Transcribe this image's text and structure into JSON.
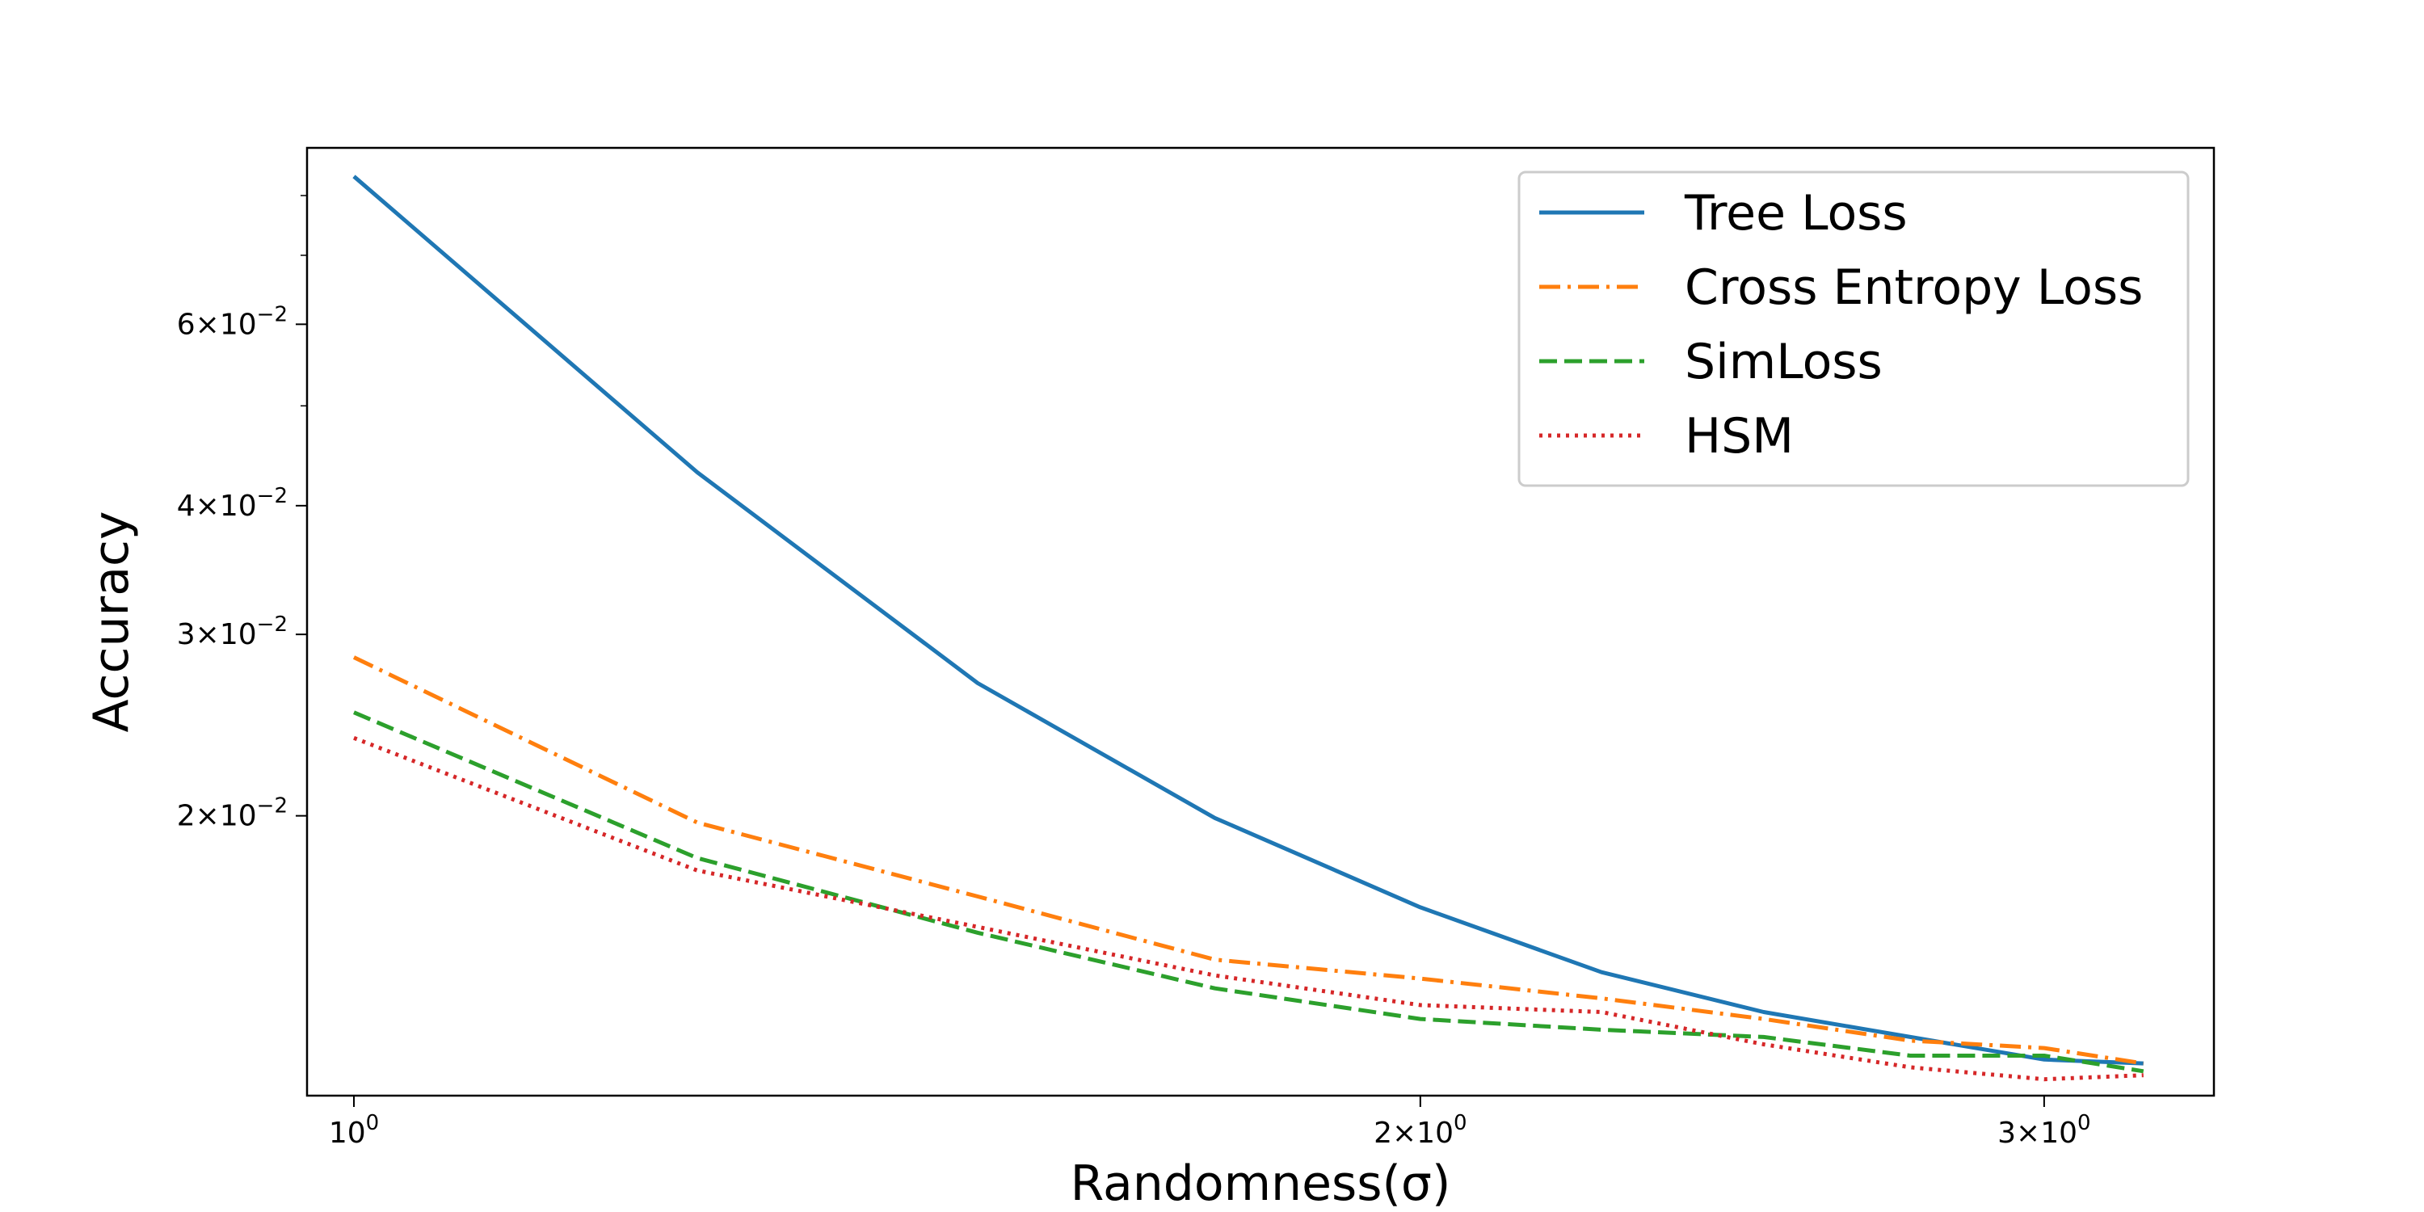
{
  "chart_data": {
    "type": "line",
    "title": "",
    "xlabel": "Randomness(σ)",
    "ylabel": "Accuracy",
    "xscale": "log",
    "yscale": "log",
    "xlim": [
      0.97,
      3.35
    ],
    "ylim": [
      0.0107,
      0.089
    ],
    "x_ticks": [
      {
        "value": 1,
        "label": "10^0"
      },
      {
        "value": 2,
        "label": "2×10^0"
      },
      {
        "value": 3,
        "label": "3×10^0"
      }
    ],
    "y_ticks": [
      {
        "value": 0.02,
        "label": "2×10^−2"
      },
      {
        "value": 0.03,
        "label": "3×10^−2"
      },
      {
        "value": 0.04,
        "label": "4×10^−2"
      },
      {
        "value": 0.06,
        "label": "6×10^−2"
      }
    ],
    "y_minor_ticks": [
      0.05,
      0.07,
      0.08
    ],
    "x": [
      1.0,
      1.25,
      1.5,
      1.75,
      2.0,
      2.25,
      2.5,
      2.75,
      3.0,
      3.2
    ],
    "series": [
      {
        "name": "Tree Loss",
        "color": "#1f77b4",
        "dash": "solid",
        "values": [
          0.0835,
          0.0431,
          0.0269,
          0.0199,
          0.0163,
          0.0141,
          0.0129,
          0.0122,
          0.0116,
          0.0115
        ]
      },
      {
        "name": "Cross Entropy Loss",
        "color": "#ff7f0e",
        "dash": "dashdot",
        "values": [
          0.0285,
          0.0197,
          0.0167,
          0.0145,
          0.0139,
          0.0133,
          0.0127,
          0.0121,
          0.0119,
          0.0115
        ]
      },
      {
        "name": "SimLoss",
        "color": "#2ca02c",
        "dash": "dashed",
        "values": [
          0.0252,
          0.0182,
          0.0154,
          0.0136,
          0.0127,
          0.0124,
          0.0122,
          0.0117,
          0.0117,
          0.0113
        ]
      },
      {
        "name": "HSM",
        "color": "#d62728",
        "dash": "dotted",
        "values": [
          0.0238,
          0.0177,
          0.0156,
          0.014,
          0.0131,
          0.0129,
          0.012,
          0.0114,
          0.0111,
          0.0112
        ]
      }
    ],
    "grid": false,
    "legend_position": "top-right"
  }
}
